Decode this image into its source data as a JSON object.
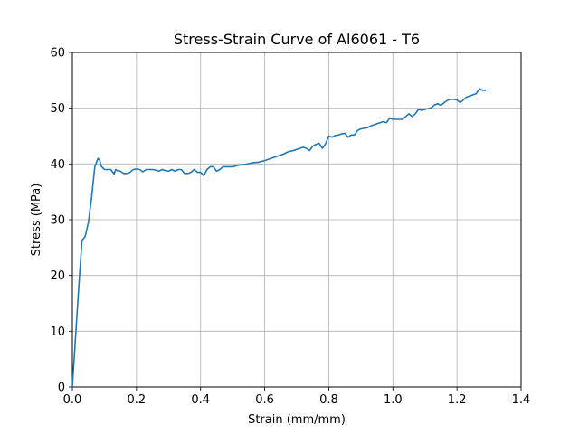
{
  "chart_data": {
    "type": "line",
    "title": "Stress-Strain Curve of Al6061 - T6",
    "xlabel": "Strain (mm/mm)",
    "ylabel": "Stress (MPa)",
    "xlim": [
      0,
      1.4
    ],
    "ylim": [
      0,
      60
    ],
    "xticks": [
      0.0,
      0.2,
      0.4,
      0.6,
      0.8,
      1.0,
      1.2,
      1.4
    ],
    "xtick_labels": [
      "0.0",
      "0.2",
      "0.4",
      "0.6",
      "0.8",
      "1.0",
      "1.2",
      "1.4"
    ],
    "yticks": [
      0,
      10,
      20,
      30,
      40,
      50,
      60
    ],
    "ytick_labels": [
      "0",
      "10",
      "20",
      "30",
      "40",
      "50",
      "60"
    ],
    "grid": true,
    "line_color": "#1f77b4",
    "series": [
      {
        "x": [
          0.0,
          0.01,
          0.02,
          0.03,
          0.04,
          0.05,
          0.06,
          0.07,
          0.08,
          0.085,
          0.09,
          0.1,
          0.11,
          0.12,
          0.13,
          0.135,
          0.14,
          0.15,
          0.16,
          0.17,
          0.18,
          0.19,
          0.2,
          0.21,
          0.22,
          0.23,
          0.24,
          0.25,
          0.26,
          0.27,
          0.28,
          0.29,
          0.3,
          0.31,
          0.32,
          0.33,
          0.34,
          0.35,
          0.36,
          0.37,
          0.38,
          0.39,
          0.4,
          0.41,
          0.42,
          0.43,
          0.44,
          0.45,
          0.46,
          0.47,
          0.48,
          0.5,
          0.52,
          0.54,
          0.56,
          0.58,
          0.6,
          0.61,
          0.62,
          0.63,
          0.64,
          0.65,
          0.66,
          0.67,
          0.68,
          0.69,
          0.7,
          0.71,
          0.72,
          0.73,
          0.74,
          0.75,
          0.76,
          0.77,
          0.78,
          0.79,
          0.8,
          0.81,
          0.82,
          0.83,
          0.84,
          0.85,
          0.86,
          0.87,
          0.88,
          0.89,
          0.9,
          0.91,
          0.92,
          0.93,
          0.94,
          0.95,
          0.96,
          0.97,
          0.98,
          0.99,
          1.0,
          1.01,
          1.02,
          1.03,
          1.04,
          1.05,
          1.06,
          1.07,
          1.08,
          1.09,
          1.1,
          1.11,
          1.12,
          1.13,
          1.14,
          1.15,
          1.16,
          1.17,
          1.18,
          1.19,
          1.2,
          1.21,
          1.22,
          1.23,
          1.24,
          1.25,
          1.26,
          1.27,
          1.28,
          1.29
        ],
        "y": [
          0.0,
          9.0,
          18.0,
          26.3,
          27.0,
          29.5,
          34.0,
          39.5,
          41.0,
          40.7,
          39.6,
          39.0,
          39.0,
          39.0,
          38.2,
          39.0,
          38.8,
          38.7,
          38.3,
          38.3,
          38.5,
          39.0,
          39.1,
          39.0,
          38.6,
          39.0,
          39.0,
          39.0,
          38.9,
          38.7,
          39.0,
          38.8,
          38.7,
          39.0,
          38.7,
          39.0,
          39.0,
          38.3,
          38.3,
          38.5,
          39.0,
          38.5,
          38.5,
          37.9,
          39.0,
          39.5,
          39.5,
          38.7,
          39.0,
          39.5,
          39.5,
          39.5,
          39.8,
          39.9,
          40.2,
          40.3,
          40.6,
          40.8,
          41.0,
          41.2,
          41.4,
          41.6,
          41.8,
          42.1,
          42.3,
          42.4,
          42.6,
          42.8,
          43.0,
          42.8,
          42.4,
          43.2,
          43.5,
          43.7,
          42.8,
          43.6,
          45.0,
          44.8,
          45.1,
          45.2,
          45.4,
          45.5,
          44.8,
          45.2,
          45.2,
          46.0,
          46.3,
          46.4,
          46.5,
          46.8,
          47.0,
          47.2,
          47.4,
          47.6,
          47.4,
          48.2,
          48.0,
          48.0,
          48.0,
          48.0,
          48.5,
          49.0,
          48.5,
          49.0,
          49.8,
          49.6,
          49.8,
          49.9,
          50.1,
          50.6,
          50.8,
          50.5,
          51.0,
          51.4,
          51.6,
          51.6,
          51.5,
          51.0,
          51.5,
          52.0,
          52.2,
          52.4,
          52.6,
          53.5,
          53.2,
          53.2
        ]
      }
    ]
  }
}
